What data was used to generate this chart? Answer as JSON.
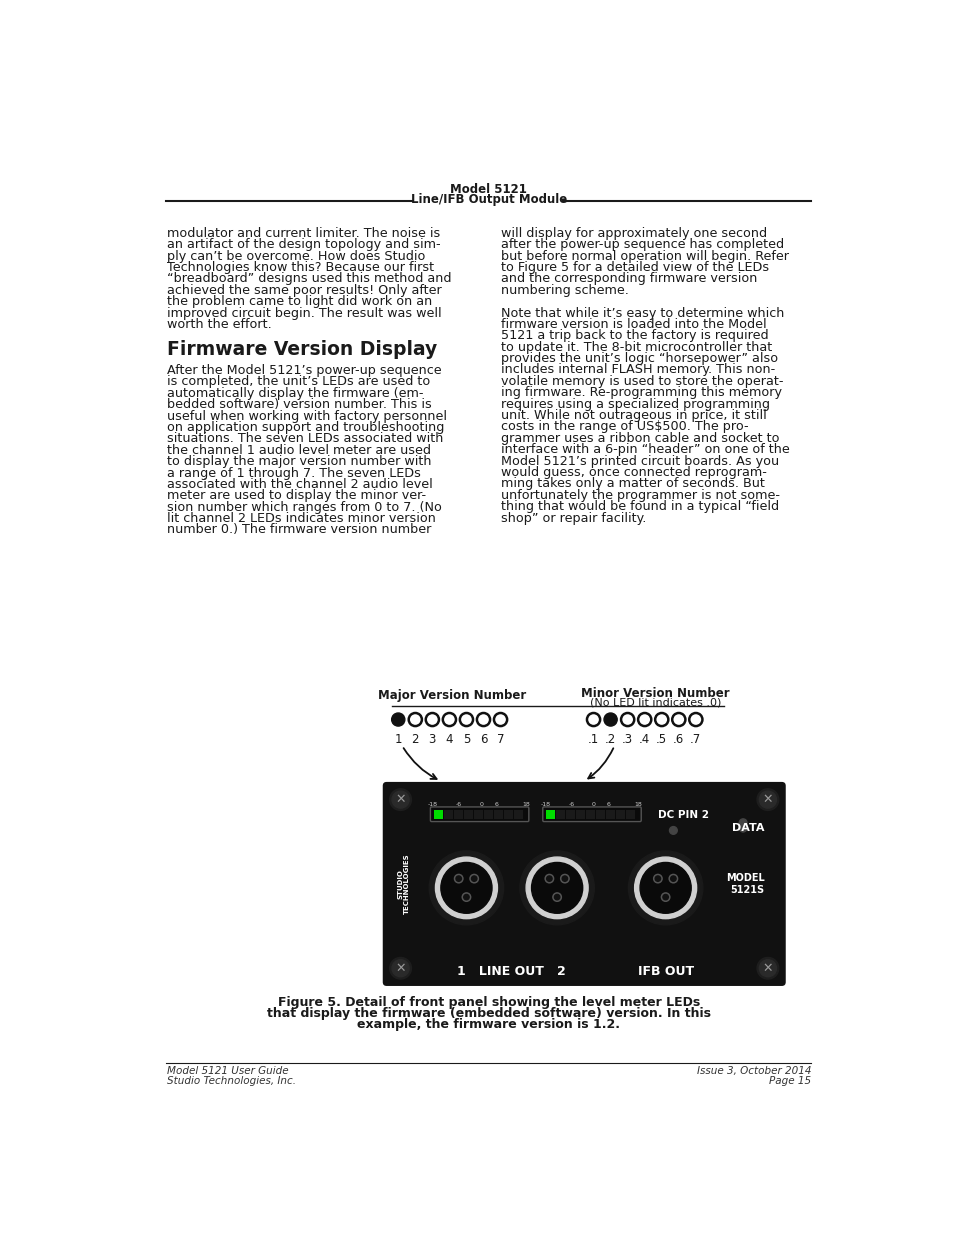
{
  "page_title_line1": "Model 5121",
  "page_title_line2": "Line/IFB Output Module",
  "footer_left_line1": "Model 5121 User Guide",
  "footer_left_line2": "Studio Technologies, Inc.",
  "footer_right_line1": "Issue 3, October 2014",
  "footer_right_line2": "Page 15",
  "col1_text": [
    "modulator and current limiter. The noise is",
    "an artifact of the design topology and sim-",
    "ply can’t be overcome. How does Studio",
    "Technologies know this? Because our first",
    "“breadboard” designs used this method and",
    "achieved the same poor results! Only after",
    "the problem came to light did work on an",
    "improved circuit begin. The result was well",
    "worth the effort."
  ],
  "section_heading": "Firmware Version Display",
  "col1_body": [
    "After the Model 5121’s power-up sequence",
    "is completed, the unit’s LEDs are used to",
    "automatically display the firmware (em-",
    "bedded software) version number. This is",
    "useful when working with factory personnel",
    "on application support and troubleshooting",
    "situations. The seven LEDs associated with",
    "the channel 1 audio level meter are used",
    "to display the major version number with",
    "a range of 1 through 7. The seven LEDs",
    "associated with the channel 2 audio level",
    "meter are used to display the minor ver-",
    "sion number which ranges from 0 to 7. (No",
    "lit channel 2 LEDs indicates minor version",
    "number 0.) The firmware version number"
  ],
  "col2_body": [
    "will display for approximately one second",
    "after the power-up sequence has completed",
    "but before normal operation will begin. Refer",
    "to Figure 5 for a detailed view of the LEDs",
    "and the corresponding firmware version",
    "numbering scheme.",
    "",
    "Note that while it’s easy to determine which",
    "firmware version is loaded into the Model",
    "5121 a trip back to the factory is required",
    "to update it. The 8-bit microcontroller that",
    "provides the unit’s logic “horsepower” also",
    "includes internal FLASH memory. This non-",
    "volatile memory is used to store the operat-",
    "ing firmware. Re-programming this memory",
    "requires using a specialized programming",
    "unit. While not outrageous in price, it still",
    "costs in the range of US$500. The pro-",
    "grammer uses a ribbon cable and socket to",
    "interface with a 6-pin “header” on one of the",
    "Model 5121’s printed circuit boards. As you",
    "would guess, once connected reprogram-",
    "ming takes only a matter of seconds. But",
    "unfortunately the programmer is not some-",
    "thing that would be found in a typical “field",
    "shop” or repair facility."
  ],
  "figure_caption_bold": "Figure 5. Detail of front panel showing the level meter LEDs",
  "figure_caption_bold2": "that display the firmware (embedded software) version. In this",
  "figure_caption_bold3": "example, the firmware version is 1.2.",
  "major_label": "Major Version Number",
  "minor_label_line1": "Minor Version Number",
  "minor_label_line2": "(No LED lit indicates .0)",
  "major_nums": [
    "1",
    "2",
    "3",
    "4",
    "5",
    "6",
    "7"
  ],
  "minor_nums": [
    ".1",
    ".2",
    ".3",
    ".4",
    ".5",
    ".6",
    ".7"
  ],
  "bg_color": "#ffffff",
  "text_color": "#1a1a1a",
  "panel_bg": "#111111",
  "panel_dark": "#0a0a0a"
}
